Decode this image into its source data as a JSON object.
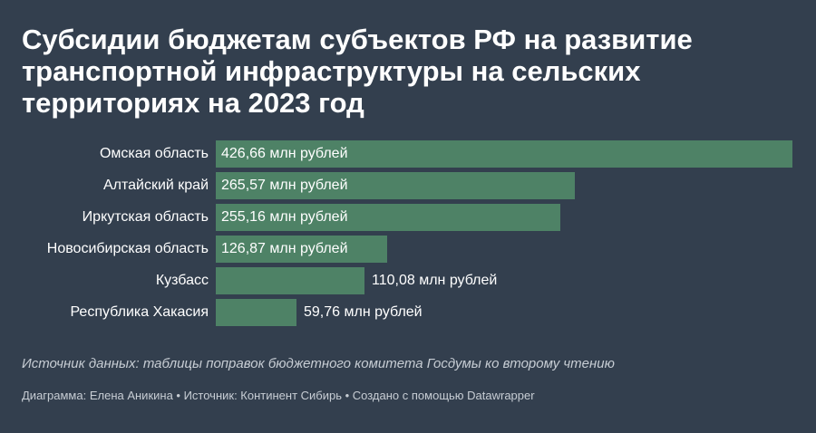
{
  "chart_data": {
    "type": "bar",
    "orientation": "horizontal",
    "title": "Субсидии бюджетам субъектов РФ на развитие транспортной инфраструктуры на сельских территориях на 2023 год",
    "categories": [
      "Омская область",
      "Алтайский край",
      "Иркутская область",
      "Новосибирская область",
      "Кузбасс",
      "Республика Хакасия"
    ],
    "values": [
      426.66,
      265.57,
      255.16,
      126.87,
      110.08,
      59.76
    ],
    "value_labels": [
      "426,66 млн рублей",
      "265,57 млн рублей",
      "255,16 млн рублей",
      "126,87 млн рублей",
      "110,08 млн рублей",
      "59,76 млн рублей"
    ],
    "xlim": [
      0,
      426.66
    ],
    "grid": false,
    "bar_color": "#4e8266"
  },
  "notes": "Источник данных: таблицы поправок бюджетного комитета Госдумы ко второму чтению",
  "footer": "Диаграмма: Елена Аникина • Источник: Континент Сибирь • Создано с помощью Datawrapper",
  "colors": {
    "background": "#333f4e",
    "bar": "#4e8266",
    "text": "#ffffff",
    "muted_text": "#c7cdd4"
  }
}
